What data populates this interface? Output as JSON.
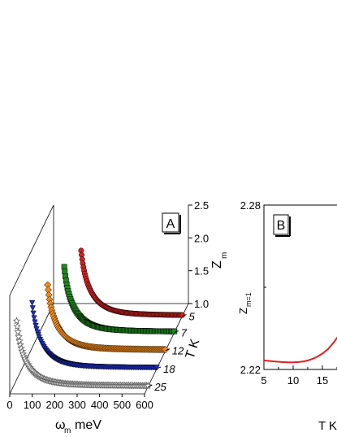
{
  "chart_data": [
    {
      "panel_label": "A",
      "type": "scatter",
      "xlabel": "ω",
      "xlabel_sub": "m",
      "xlabel_unit": "meV",
      "x_ticks": [
        "0",
        "100",
        "200",
        "300",
        "400",
        "500",
        "600"
      ],
      "xlim": [
        0,
        600
      ],
      "zlabel": "Z",
      "zlabel_sub": "m",
      "z_ticks": [
        "1.0",
        "1.5",
        "2.0",
        "2.5"
      ],
      "zlim": [
        1.0,
        2.5
      ],
      "ylabel": "T K",
      "y_ticks": [
        "5",
        "7",
        "12",
        "18",
        "25"
      ],
      "series": [
        {
          "temperature": 5,
          "marker": "circle",
          "color": "#d42020",
          "x_start": 150,
          "z_start": 2.0,
          "z_end": 1.0
        },
        {
          "temperature": 7,
          "marker": "square",
          "color": "#1e8a1e",
          "x_start": 110,
          "z_start": 2.0,
          "z_end": 1.0
        },
        {
          "temperature": 12,
          "marker": "diamond",
          "color": "#f08a1c",
          "x_start": 75,
          "z_start": 2.0,
          "z_end": 1.0
        },
        {
          "temperature": 18,
          "marker": "triangle-down",
          "color": "#1c2fc8",
          "x_start": 45,
          "z_start": 2.0,
          "z_end": 1.0
        },
        {
          "temperature": 25,
          "marker": "star",
          "color": "#888888",
          "x_start": 15,
          "z_start": 2.0,
          "z_end": 1.0
        }
      ]
    },
    {
      "panel_label": "B",
      "type": "line",
      "ylabel": "Z",
      "ylabel_sub": "m=1",
      "xlabel": "T K",
      "x_ticks": [
        "5",
        "10",
        "15"
      ],
      "y_ticks": [
        "2.22",
        "2.28"
      ],
      "xlim": [
        5,
        20
      ],
      "ylim": [
        2.22,
        2.28
      ],
      "series": [
        {
          "color": "#e02020",
          "x": [
            5,
            6,
            7,
            8,
            9,
            10,
            11,
            12,
            13,
            14,
            15,
            16,
            17,
            18
          ],
          "y": [
            2.2233,
            2.2231,
            2.2229,
            2.2227,
            2.2226,
            2.2226,
            2.2227,
            2.223,
            2.2236,
            2.2245,
            2.2258,
            2.2275,
            2.23,
            2.233
          ]
        }
      ]
    }
  ]
}
